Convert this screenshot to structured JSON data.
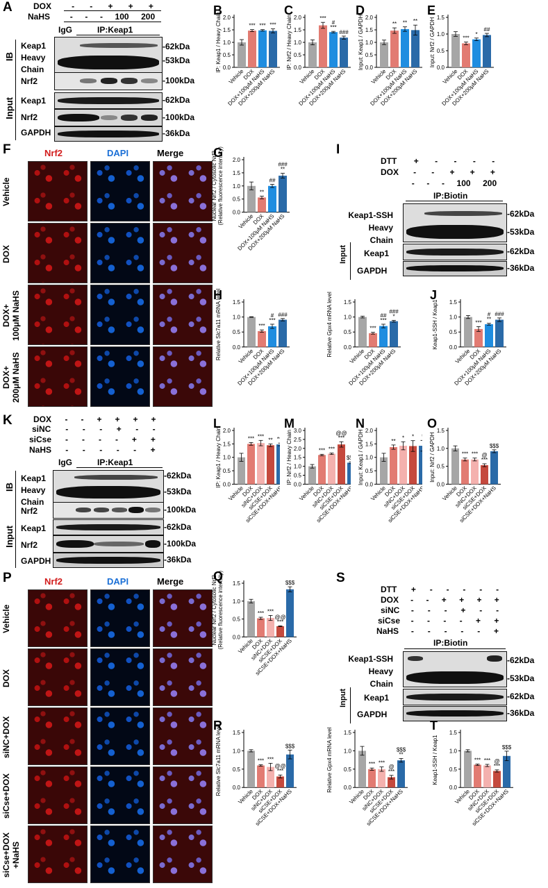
{
  "panels": {
    "A": "A",
    "B": "B",
    "C": "C",
    "D": "D",
    "E": "E",
    "F": "F",
    "G": "G",
    "H": "H",
    "I": "I",
    "J": "J",
    "K": "K",
    "L": "L",
    "M": "M",
    "N": "N",
    "O": "O",
    "P": "P",
    "Q": "Q",
    "R": "R",
    "S": "S",
    "T": "T"
  },
  "blotA": {
    "rows": [
      "DOX",
      "NaHS"
    ],
    "dox": [
      "-",
      "-",
      "+",
      "+",
      "+"
    ],
    "nahs": [
      "-",
      "-",
      "-",
      "100",
      "200"
    ],
    "igg": "IgG",
    "ip": "IP:Keap1",
    "ib": "IB",
    "input": "Input",
    "labels": [
      "Keap1",
      "Heavy",
      "Chain",
      "Nrf2",
      "Keap1",
      "Nrf2",
      "GAPDH"
    ],
    "mw": [
      "-62kDa",
      "-53kDa",
      "-100kDa",
      "-62kDa",
      "-100kDa",
      "-36kDa"
    ]
  },
  "blotI": {
    "rows": [
      "DTT",
      "DOX"
    ],
    "dtt": [
      "+",
      "-",
      "-",
      "-",
      "-"
    ],
    "dox": [
      "-",
      "-",
      "+",
      "+",
      "+"
    ],
    "nahs": [
      "-",
      "-",
      "-",
      "100",
      "200"
    ],
    "ip": "IP:Biotin",
    "input": "Input",
    "labels": [
      "Keap1-SSH",
      "Heavy",
      "Chain",
      "Keap1",
      "GAPDH"
    ],
    "mw": [
      "-62kDa",
      "-53kDa",
      "-62kDa",
      "-36kDa"
    ]
  },
  "blotK": {
    "rows": [
      "DOX",
      "siNC",
      "siCse",
      "NaHS"
    ],
    "dox": [
      "-",
      "-",
      "+",
      "+",
      "+",
      "+"
    ],
    "sinc": [
      "-",
      "-",
      "-",
      "+",
      "-",
      "-"
    ],
    "sicse": [
      "-",
      "-",
      "-",
      "-",
      "+",
      "+"
    ],
    "nahs": [
      "-",
      "-",
      "-",
      "-",
      "-",
      "+"
    ],
    "igg": "IgG",
    "ip": "IP:Keap1",
    "ib": "IB",
    "input": "Input",
    "labels": [
      "Keap1",
      "Heavy",
      "Chain",
      "Nrf2",
      "Keap1",
      "Nrf2",
      "GAPDH"
    ],
    "mw": [
      "-62kDa",
      "-53kDa",
      "-100kDa",
      "-62kDa",
      "-100kDa",
      "-36kDa"
    ]
  },
  "blotS": {
    "rows": [
      "DTT",
      "DOX",
      "siNC",
      "siCse",
      "NaHS"
    ],
    "dtt": [
      "+",
      "-",
      "-",
      "-",
      "-",
      "-"
    ],
    "dox": [
      "-",
      "-",
      "+",
      "+",
      "+",
      "+"
    ],
    "sinc": [
      "-",
      "-",
      "-",
      "+",
      "-",
      "-"
    ],
    "sicse": [
      "-",
      "-",
      "-",
      "-",
      "+",
      "+"
    ],
    "nahs": [
      "-",
      "-",
      "-",
      "-",
      "-",
      "+"
    ],
    "ip": "IP:Biotin",
    "input": "Input",
    "labels": [
      "Keap1-SSH",
      "Heavy",
      "Chain",
      "Keap1",
      "GAPDH"
    ],
    "mw": [
      "-62kDa",
      "-53kDa",
      "-62kDa",
      "-36kDa"
    ]
  },
  "micro1": {
    "cols": [
      "Nrf2",
      "DAPI",
      "Merge"
    ],
    "rows": [
      "Vehicle",
      "DOX",
      "DOX+\n100μM NaHS",
      "DOX+\n200μM NaHS"
    ]
  },
  "micro2": {
    "cols": [
      "Nrf2",
      "DAPI",
      "Merge"
    ],
    "rows": [
      "Vehicle",
      "DOX",
      "siNC+DOX",
      "siCse+DOX",
      "siCse+DOX\n+NaHS"
    ]
  },
  "colors": {
    "vehicle": "#a6a6a6",
    "dox": "#e27b72",
    "low": "#1f8de0",
    "high": "#2a6aa8",
    "sinc": "#f4b1ae",
    "sicse": "#c5493d"
  },
  "chart_data": [
    {
      "id": "B",
      "type": "bar",
      "ylabel": "IP: Keap1 / Heavy Chain",
      "categories": [
        "Vehicle",
        "DOX",
        "DOX+100μM NaHS",
        "DOX+200μM NaHS"
      ],
      "values": [
        1.0,
        1.47,
        1.48,
        1.46
      ],
      "errors": [
        0.11,
        0.04,
        0.03,
        0.08
      ],
      "ylim": [
        0,
        2.0
      ],
      "yticks": [
        "0.0",
        "0.5",
        "1.0",
        "1.5",
        "2.0"
      ],
      "annotations": [
        "",
        "***",
        "***",
        "***"
      ]
    },
    {
      "id": "C",
      "type": "bar",
      "ylabel": "IP: Nrf2 / Heavy Chain",
      "categories": [
        "Vehicle",
        "DOX",
        "DOX+100μM NaHS",
        "DOX+200μM NaHS"
      ],
      "values": [
        1.0,
        1.68,
        1.41,
        1.19
      ],
      "errors": [
        0.1,
        0.12,
        0.03,
        0.06
      ],
      "ylim": [
        0,
        2.0
      ],
      "yticks": [
        "0.0",
        "0.5",
        "1.0",
        "1.5",
        "2.0"
      ],
      "annotations": [
        "",
        "***",
        "#\n***",
        "###"
      ]
    },
    {
      "id": "D",
      "type": "bar",
      "ylabel": "Input: Keap1 / GAPDH",
      "categories": [
        "Vehicle",
        "DOX",
        "DOX+100μM NaHS",
        "DOX+200μM NaHS"
      ],
      "values": [
        1.0,
        1.47,
        1.53,
        1.49
      ],
      "errors": [
        0.09,
        0.11,
        0.09,
        0.2
      ],
      "ylim": [
        0,
        2.0
      ],
      "yticks": [
        "0.0",
        "0.5",
        "1.0",
        "1.5",
        "2.0"
      ],
      "annotations": [
        "",
        "**",
        "**",
        "**"
      ]
    },
    {
      "id": "E",
      "type": "bar",
      "ylabel": "Input: Nrf2 / GAPDH",
      "categories": [
        "Vehicle",
        "DOX",
        "DOX+100μM NaHS",
        "DOX+200μM NaHS"
      ],
      "values": [
        1.0,
        0.72,
        0.84,
        0.97
      ],
      "errors": [
        0.07,
        0.04,
        0.04,
        0.05
      ],
      "ylim": [
        0,
        1.5
      ],
      "yticks": [
        "0.0",
        "0.5",
        "1.0",
        "1.5"
      ],
      "annotations": [
        "",
        "***",
        "*",
        "##"
      ]
    },
    {
      "id": "G",
      "type": "bar",
      "ylabel": "Nuclear Nrf2 / Cytosolic Nrf2\n(Relative fluorescence intensity)",
      "categories": [
        "Vehicle",
        "DOX",
        "DOX+100μM NaHS",
        "DOX+200μM NaHS"
      ],
      "values": [
        1.0,
        0.56,
        1.0,
        1.39
      ],
      "errors": [
        0.15,
        0.05,
        0.06,
        0.09
      ],
      "ylim": [
        0,
        2.0
      ],
      "yticks": [
        "0.0",
        "0.5",
        "1.0",
        "1.5",
        "2.0"
      ],
      "annotations": [
        "",
        "**",
        "##",
        "###\n**"
      ]
    },
    {
      "id": "H1",
      "type": "bar",
      "ylabel": "Relative Slc7a11 mRNA level",
      "categories": [
        "Vehicle",
        "DOX",
        "DOX+100μM NaHS",
        "DOX+200μM NaHS"
      ],
      "values": [
        1.0,
        0.53,
        0.69,
        0.91
      ],
      "errors": [
        0.01,
        0.04,
        0.07,
        0.04
      ],
      "ylim": [
        0,
        1.5
      ],
      "yticks": [
        "0.0",
        "0.5",
        "1.0",
        "1.5"
      ],
      "annotations": [
        "",
        "***",
        "#\n***",
        "###"
      ]
    },
    {
      "id": "H2",
      "type": "bar",
      "ylabel": "Relative Gpx4 mRNA level",
      "categories": [
        "Vehicle",
        "DOX",
        "DOX+100μM NaHS",
        "DOX+200μM NaHS"
      ],
      "values": [
        1.0,
        0.46,
        0.7,
        0.86
      ],
      "errors": [
        0.03,
        0.03,
        0.06,
        0.03
      ],
      "ylim": [
        0,
        1.5
      ],
      "yticks": [
        "0.0",
        "0.5",
        "1.0",
        "1.5"
      ],
      "annotations": [
        "",
        "***",
        "##\n***",
        "###\n*"
      ]
    },
    {
      "id": "J",
      "type": "bar",
      "ylabel": "Keap1-SSH / Keap1",
      "categories": [
        "Vehicle",
        "DOX",
        "DOX+100μM NaHS",
        "DOX+200μM NaHS"
      ],
      "values": [
        1.0,
        0.6,
        0.76,
        0.91
      ],
      "errors": [
        0.05,
        0.08,
        0.03,
        0.06
      ],
      "ylim": [
        0,
        1.5
      ],
      "yticks": [
        "0.0",
        "0.5",
        "1.0",
        "1.5"
      ],
      "annotations": [
        "",
        "***",
        "#\n**",
        "###"
      ]
    },
    {
      "id": "L",
      "type": "bar",
      "ylabel": "IP: Keap1 / Heavy Chain",
      "categories": [
        "Vehicle",
        "DOX",
        "siNC+DOX",
        "siCSE+DOX",
        "siCSE+DOX+NaHS"
      ],
      "values": [
        1.0,
        1.5,
        1.53,
        1.45,
        1.48
      ],
      "errors": [
        0.15,
        0.05,
        0.1,
        0.05,
        0.05
      ],
      "ylim": [
        0,
        2.0
      ],
      "yticks": [
        "0.0",
        "0.5",
        "1.0",
        "1.5",
        "2.0"
      ],
      "annotations": [
        "",
        "***",
        "***",
        "**",
        "***"
      ]
    },
    {
      "id": "M",
      "type": "bar",
      "ylabel": "IP: Nrf2 / Heavy Chain",
      "categories": [
        "Vehicle",
        "DOX",
        "siNC+DOX",
        "siCSE+DOX",
        "siCSE+DOX+NaHS"
      ],
      "values": [
        1.0,
        1.63,
        1.7,
        2.22,
        1.2
      ],
      "errors": [
        0.1,
        0.04,
        0.04,
        0.15,
        0.05
      ],
      "ylim": [
        0,
        3.0
      ],
      "yticks": [
        "0.0",
        "0.5",
        "1.0",
        "1.5",
        "2.0",
        "2.5",
        "3.0"
      ],
      "annotations": [
        "",
        "***",
        "***",
        "@@\n***",
        "$$$"
      ]
    },
    {
      "id": "N",
      "type": "bar",
      "ylabel": "Input: Keap1 / GAPDH",
      "categories": [
        "Vehicle",
        "DOX",
        "siNC+DOX",
        "siCSE+DOX",
        "siCSE+DOX+NaHS"
      ],
      "values": [
        1.0,
        1.38,
        1.43,
        1.42,
        1.43
      ],
      "errors": [
        0.15,
        0.08,
        0.15,
        0.2,
        0.2
      ],
      "ylim": [
        0,
        2.0
      ],
      "yticks": [
        "0.0",
        "0.5",
        "1.0",
        "1.5",
        "2.0"
      ],
      "annotations": [
        "",
        "**",
        "*",
        "*",
        "*"
      ]
    },
    {
      "id": "O",
      "type": "bar",
      "ylabel": "Input: Nrf2 / GAPDH",
      "categories": [
        "Vehicle",
        "DOX",
        "siNC+DOX",
        "siCSE+DOX",
        "siCSE+DOX+NaHS"
      ],
      "values": [
        1.0,
        0.69,
        0.69,
        0.53,
        0.92
      ],
      "errors": [
        0.07,
        0.04,
        0.04,
        0.04,
        0.04
      ],
      "ylim": [
        0,
        1.5
      ],
      "yticks": [
        "0.0",
        "0.5",
        "1.0",
        "1.5"
      ],
      "annotations": [
        "",
        "***",
        "***",
        "@\n***",
        "$$$"
      ]
    },
    {
      "id": "Q",
      "type": "bar",
      "ylabel": "Nuclear Nrf2 / Cytosolic Nrf2\n(Relative fluorescence intensity)",
      "categories": [
        "Vehicle",
        "DOX",
        "siNC+DOX",
        "siCSE+DOX",
        "siCSE+DOX+NaHS"
      ],
      "values": [
        1.0,
        0.52,
        0.53,
        0.3,
        1.33
      ],
      "errors": [
        0.05,
        0.03,
        0.07,
        0.01,
        0.07
      ],
      "ylim": [
        0,
        1.5
      ],
      "yticks": [
        "0.0",
        "0.5",
        "1.0",
        "1.5"
      ],
      "annotations": [
        "",
        "***",
        "***",
        "@@\n***",
        "$$$"
      ]
    },
    {
      "id": "R1",
      "type": "bar",
      "ylabel": "Relative Slc7a11 mRNA level",
      "categories": [
        "Vehicle",
        "DOX",
        "siNC+DOX",
        "siCSE+DOX",
        "siCSE+DOX+NaHS"
      ],
      "values": [
        1.0,
        0.6,
        0.56,
        0.3,
        0.9
      ],
      "errors": [
        0.03,
        0.02,
        0.1,
        0.04,
        0.12
      ],
      "ylim": [
        0,
        1.5
      ],
      "yticks": [
        "0.0",
        "0.5",
        "1.0",
        "1.5"
      ],
      "annotations": [
        "",
        "***",
        "***",
        "@@\n***",
        "$$$"
      ]
    },
    {
      "id": "R2",
      "type": "bar",
      "ylabel": "Relative Gpx4 mRNA level",
      "categories": [
        "Vehicle",
        "DOX",
        "siNC+DOX",
        "siCSE+DOX",
        "siCSE+DOX+NaHS"
      ],
      "values": [
        1.0,
        0.5,
        0.5,
        0.28,
        0.74
      ],
      "errors": [
        0.12,
        0.03,
        0.06,
        0.05,
        0.05
      ],
      "ylim": [
        0,
        1.5
      ],
      "yticks": [
        "0.0",
        "0.5",
        "1.0",
        "1.5"
      ],
      "annotations": [
        "",
        "***",
        "***",
        "@\n***",
        "$$$\n**"
      ]
    },
    {
      "id": "T",
      "type": "bar",
      "ylabel": "Keap1-SSH / Keap1",
      "categories": [
        "Vehicle",
        "DOX",
        "siNC+DOX",
        "siCSE+DOX",
        "siCSE+DOX+NaHS"
      ],
      "values": [
        1.0,
        0.62,
        0.6,
        0.45,
        0.86
      ],
      "errors": [
        0.03,
        0.02,
        0.03,
        0.03,
        0.13
      ],
      "ylim": [
        0,
        1.5
      ],
      "yticks": [
        "0.0",
        "0.5",
        "1.0",
        "1.5"
      ],
      "annotations": [
        "",
        "***",
        "***",
        "@\n***",
        "$$$"
      ]
    }
  ]
}
